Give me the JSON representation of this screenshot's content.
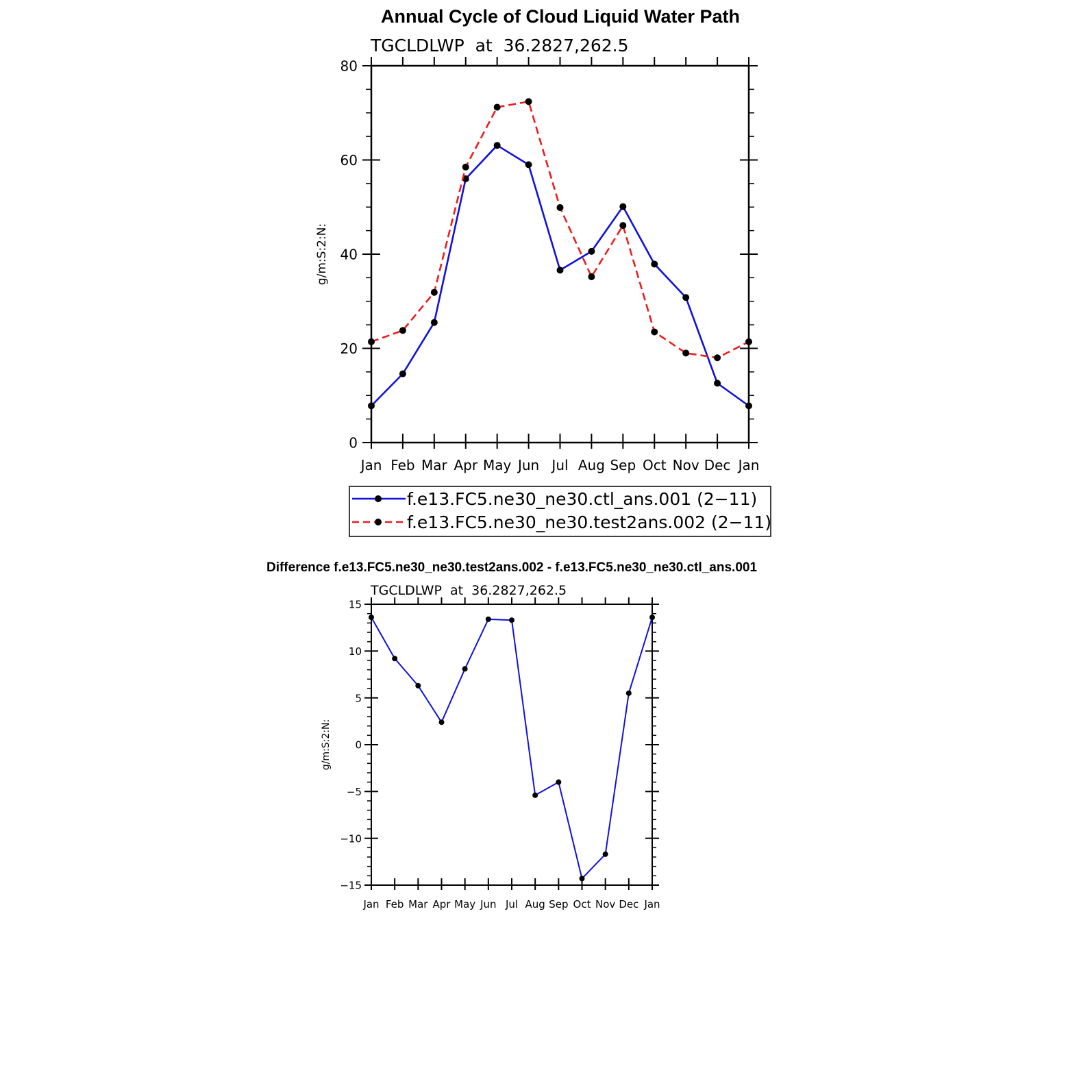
{
  "chart_data": [
    {
      "type": "line",
      "title": "Annual Cycle of Cloud Liquid Water Path",
      "subtitle": "TGCLDLWP  at  36.2827,262.5",
      "xlabel": "",
      "ylabel": "g/m:S:2:N:",
      "categories": [
        "Jan",
        "Feb",
        "Mar",
        "Apr",
        "May",
        "Jun",
        "Jul",
        "Aug",
        "Sep",
        "Oct",
        "Nov",
        "Dec",
        "Jan"
      ],
      "ylim": [
        0,
        80
      ],
      "yticks": [
        0,
        20,
        40,
        60,
        80
      ],
      "yticklabels": [
        "0",
        "20",
        "40",
        "60",
        "80"
      ],
      "grid": false,
      "legend_position": "bottom",
      "series": [
        {
          "name": "f.e13.FC5.ne30_ne30.ctl_ans.001 (2−11)",
          "color": "#1010e0",
          "dash": "solid",
          "values": [
            7.8,
            14.6,
            25.5,
            56.0,
            63.1,
            59.0,
            36.6,
            40.6,
            50.1,
            37.9,
            30.8,
            12.6,
            7.8
          ]
        },
        {
          "name": "f.e13.FC5.ne30_ne30.test2ans.002 (2−11)",
          "color": "#ee1c1c",
          "dash": "dashed",
          "values": [
            21.4,
            23.8,
            31.9,
            58.5,
            71.2,
            72.4,
            49.9,
            35.2,
            46.1,
            23.5,
            19.0,
            18.0,
            21.4
          ]
        }
      ]
    },
    {
      "type": "line",
      "title": "Difference f.e13.FC5.ne30_ne30.test2ans.002 - f.e13.FC5.ne30_ne30.ctl_ans.001",
      "subtitle": "TGCLDLWP  at  36.2827,262.5",
      "xlabel": "",
      "ylabel": "g/m:S:2:N:",
      "categories": [
        "Jan",
        "Feb",
        "Mar",
        "Apr",
        "May",
        "Jun",
        "Jul",
        "Aug",
        "Sep",
        "Oct",
        "Nov",
        "Dec",
        "Jan"
      ],
      "ylim": [
        -15,
        15
      ],
      "yticks": [
        -15,
        -10,
        -5,
        0,
        5,
        10,
        15
      ],
      "yticklabels": [
        "−15",
        "−10",
        "−5",
        "0",
        "5",
        "10",
        "15"
      ],
      "grid": false,
      "series": [
        {
          "color": "#1010e0",
          "dash": "solid",
          "values": [
            13.6,
            9.2,
            6.3,
            2.4,
            8.1,
            13.4,
            13.3,
            -5.4,
            -4.0,
            -14.3,
            -11.7,
            5.5,
            13.6
          ]
        }
      ]
    }
  ]
}
